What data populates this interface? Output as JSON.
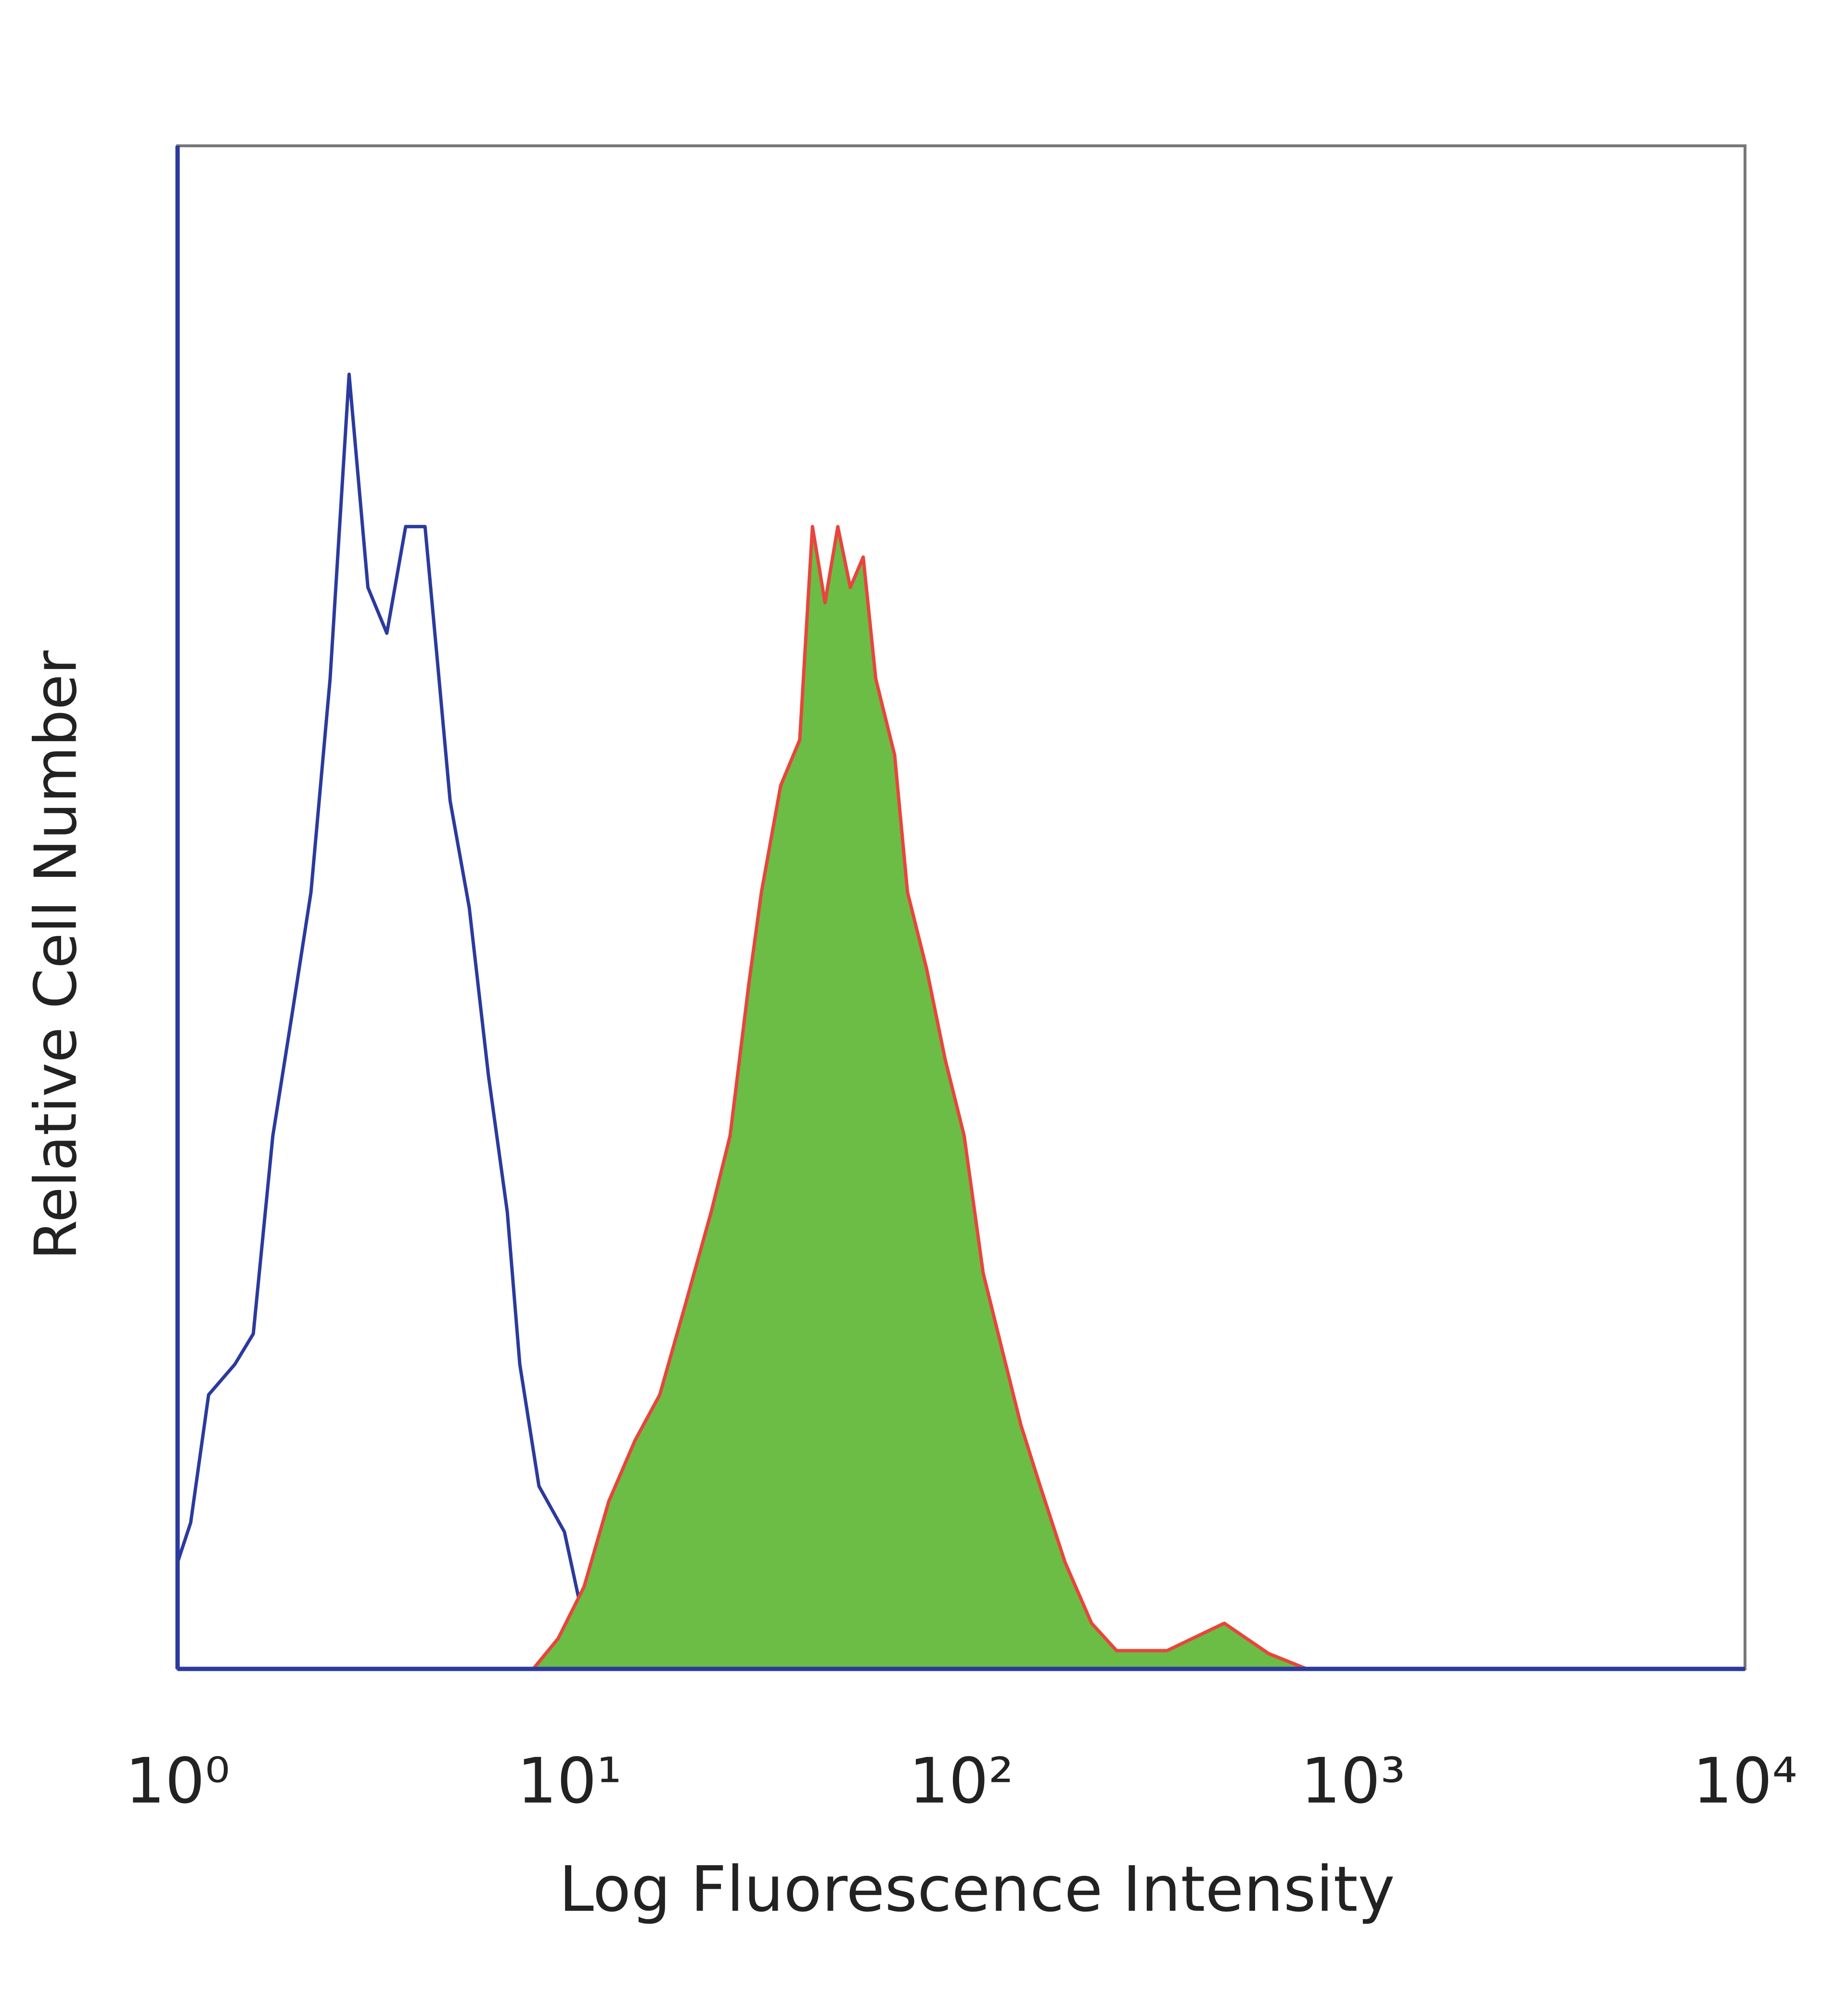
{
  "chart_data": {
    "type": "histogram-overlay",
    "xlabel": "Log Fluorescence Intensity",
    "ylabel": "Relative Cell Number",
    "xscale": "log",
    "xlim": [
      1,
      10000
    ],
    "ylim": [
      0,
      100
    ],
    "xticks": [
      {
        "value": 1,
        "label": "10⁰"
      },
      {
        "value": 10,
        "label": "10¹"
      },
      {
        "value": 100,
        "label": "10²"
      },
      {
        "value": 1000,
        "label": "10³"
      },
      {
        "value": 10000,
        "label": "10⁴"
      }
    ],
    "series": [
      {
        "style": "line",
        "color": "#2b3a9e",
        "x": [
          1,
          1.08,
          1.2,
          1.4,
          1.56,
          1.75,
          1.96,
          2.19,
          2.45,
          2.74,
          3.06,
          3.42,
          3.82,
          4.28,
          4.61,
          4.96,
          5.55,
          6.21,
          6.94,
          7.47,
          8.36,
          9.71,
          10.9,
          13.6,
          17.2,
          33.4
        ],
        "values": [
          7,
          9.6,
          18,
          20,
          22,
          35,
          43,
          51,
          65,
          85,
          71,
          68,
          75,
          75,
          66,
          57,
          50,
          39,
          30,
          20,
          12,
          9,
          3,
          1,
          0.4,
          0
        ]
      },
      {
        "style": "filled",
        "color": "#6bbd45",
        "edgecolor": "#e8453c",
        "x": [
          8.08,
          9.36,
          10.9,
          12.6,
          14.7,
          17.0,
          19.8,
          23.0,
          25.7,
          28.7,
          30.9,
          34.6,
          38.7,
          41.7,
          44.9,
          48.4,
          52.1,
          56.2,
          60.5,
          67.6,
          72.9,
          81.5,
          91.0,
          101.7,
          113.7,
          127,
          142,
          159,
          184,
          215,
          249,
          335,
          469,
          609,
          762
        ],
        "values": [
          0,
          2,
          5.4,
          11,
          15,
          18,
          24,
          30,
          35,
          45,
          51,
          58,
          61,
          75,
          70,
          75,
          71,
          73,
          65,
          60,
          51,
          46,
          40,
          35,
          26,
          21,
          16,
          12,
          7,
          3,
          1.2,
          1.2,
          3,
          1,
          0
        ]
      }
    ]
  }
}
